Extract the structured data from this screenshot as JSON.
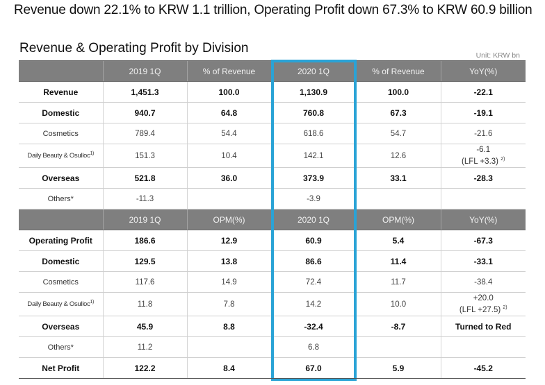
{
  "headline": "Revenue down 22.1% to KRW 1.1 trillion, Operating Profit down 67.3% to KRW 60.9 billion",
  "section_title": "Revenue & Operating Profit by Division",
  "unit": "Unit: KRW bn",
  "revenue_header": [
    "",
    "2019 1Q",
    "% of Revenue",
    "2020 1Q",
    "% of Revenue",
    "YoY(%)"
  ],
  "revenue_rows": [
    {
      "label": "Revenue",
      "v2019": "1,451.3",
      "pct2019": "100.0",
      "v2020": "1,130.9",
      "pct2020": "100.0",
      "yoy": "-22.1"
    },
    {
      "label": "Domestic",
      "v2019": "940.7",
      "pct2019": "64.8",
      "v2020": "760.8",
      "pct2020": "67.3",
      "yoy": "-19.1"
    },
    {
      "label": "Cosmetics",
      "v2019": "789.4",
      "pct2019": "54.4",
      "v2020": "618.6",
      "pct2020": "54.7",
      "yoy": "-21.6"
    },
    {
      "label": "Daily Beauty & Osulloc",
      "label_sup": "1)",
      "v2019": "151.3",
      "pct2019": "10.4",
      "v2020": "142.1",
      "pct2020": "12.6",
      "yoy": "-6.1",
      "yoy_note": "(LFL +3.3)",
      "yoy_note_sup": "2)"
    },
    {
      "label": "Overseas",
      "v2019": "521.8",
      "pct2019": "36.0",
      "v2020": "373.9",
      "pct2020": "33.1",
      "yoy": "-28.3"
    },
    {
      "label": "Others*",
      "v2019": "-11.3",
      "pct2019": "",
      "v2020": "-3.9",
      "pct2020": "",
      "yoy": ""
    }
  ],
  "profit_header": [
    "",
    "2019 1Q",
    "OPM(%)",
    "2020 1Q",
    "OPM(%)",
    "YoY(%)"
  ],
  "profit_rows": [
    {
      "label": "Operating Profit",
      "v2019": "186.6",
      "opm2019": "12.9",
      "v2020": "60.9",
      "opm2020": "5.4",
      "yoy": "-67.3"
    },
    {
      "label": "Domestic",
      "v2019": "129.5",
      "opm2019": "13.8",
      "v2020": "86.6",
      "opm2020": "11.4",
      "yoy": "-33.1"
    },
    {
      "label": "Cosmetics",
      "v2019": "117.6",
      "opm2019": "14.9",
      "v2020": "72.4",
      "opm2020": "11.7",
      "yoy": "-38.4"
    },
    {
      "label": "Daily Beauty & Osulloc",
      "label_sup": "1)",
      "v2019": "11.8",
      "opm2019": "7.8",
      "v2020": "14.2",
      "opm2020": "10.0",
      "yoy": "+20.0",
      "yoy_note": "(LFL +27.5)",
      "yoy_note_sup": "2)"
    },
    {
      "label": "Overseas",
      "v2019": "45.9",
      "opm2019": "8.8",
      "v2020": "-32.4",
      "opm2020": "-8.7",
      "yoy": "Turned to Red"
    },
    {
      "label": "Others*",
      "v2019": "11.2",
      "opm2019": "",
      "v2020": "6.8",
      "opm2020": "",
      "yoy": ""
    },
    {
      "label": "Net Profit",
      "v2019": "122.2",
      "opm2019": "8.4",
      "v2020": "67.0",
      "opm2020": "5.9",
      "yoy": "-45.2"
    }
  ],
  "colors": {
    "header_bg": "#7f7f7f",
    "highlight": "#2aa3d6"
  }
}
